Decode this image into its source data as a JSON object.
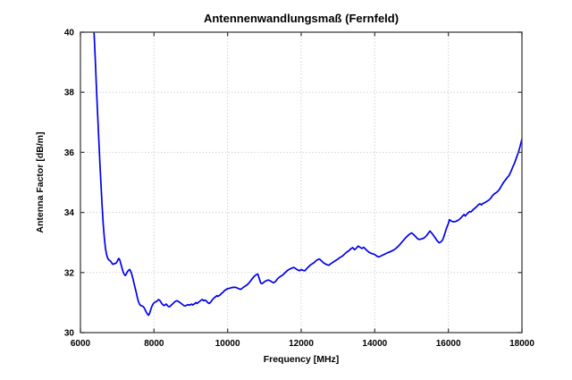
{
  "figure": {
    "background": "#ffffff"
  },
  "chart_data": {
    "type": "line",
    "title": "Antennenwandlungsmaß (Fernfeld)",
    "xlabel": "Frequency [MHz]",
    "ylabel": "Antenna Factor [dB/m]",
    "xlim": [
      6000,
      18000
    ],
    "ylim": [
      30,
      40
    ],
    "xticks": [
      6000,
      8000,
      10000,
      12000,
      14000,
      16000,
      18000
    ],
    "yticks": [
      30,
      32,
      34,
      36,
      38,
      40
    ],
    "grid": true,
    "legend": "none",
    "line_color": "#0000ee",
    "axis_color": "#404040",
    "grid_color": "#c8c8c8",
    "series": [
      {
        "name": "antenna-factor-far-field",
        "points": [
          [
            6360,
            40.25
          ],
          [
            6385,
            39.6
          ],
          [
            6410,
            38.9
          ],
          [
            6440,
            38.0
          ],
          [
            6470,
            37.2
          ],
          [
            6500,
            36.4
          ],
          [
            6530,
            35.6
          ],
          [
            6560,
            34.9
          ],
          [
            6590,
            34.2
          ],
          [
            6620,
            33.6
          ],
          [
            6650,
            33.15
          ],
          [
            6680,
            32.8
          ],
          [
            6710,
            32.6
          ],
          [
            6740,
            32.48
          ],
          [
            6770,
            32.42
          ],
          [
            6800,
            32.4
          ],
          [
            6830,
            32.36
          ],
          [
            6860,
            32.3
          ],
          [
            6890,
            32.27
          ],
          [
            6920,
            32.3
          ],
          [
            6950,
            32.3
          ],
          [
            6980,
            32.33
          ],
          [
            7010,
            32.4
          ],
          [
            7040,
            32.47
          ],
          [
            7070,
            32.42
          ],
          [
            7100,
            32.28
          ],
          [
            7130,
            32.15
          ],
          [
            7160,
            32.02
          ],
          [
            7190,
            31.94
          ],
          [
            7220,
            31.9
          ],
          [
            7250,
            31.96
          ],
          [
            7280,
            32.03
          ],
          [
            7310,
            32.08
          ],
          [
            7340,
            32.1
          ],
          [
            7370,
            32.03
          ],
          [
            7400,
            31.92
          ],
          [
            7430,
            31.78
          ],
          [
            7460,
            31.62
          ],
          [
            7490,
            31.47
          ],
          [
            7520,
            31.32
          ],
          [
            7550,
            31.15
          ],
          [
            7580,
            31.02
          ],
          [
            7610,
            30.94
          ],
          [
            7640,
            30.9
          ],
          [
            7670,
            30.89
          ],
          [
            7700,
            30.87
          ],
          [
            7730,
            30.83
          ],
          [
            7760,
            30.76
          ],
          [
            7790,
            30.68
          ],
          [
            7820,
            30.62
          ],
          [
            7850,
            30.58
          ],
          [
            7880,
            30.64
          ],
          [
            7910,
            30.76
          ],
          [
            7940,
            30.87
          ],
          [
            7970,
            30.94
          ],
          [
            8000,
            30.99
          ],
          [
            8030,
            31.02
          ],
          [
            8060,
            31.03
          ],
          [
            8090,
            31.06
          ],
          [
            8120,
            31.1
          ],
          [
            8150,
            31.08
          ],
          [
            8180,
            31.03
          ],
          [
            8210,
            30.97
          ],
          [
            8240,
            30.93
          ],
          [
            8270,
            30.9
          ],
          [
            8300,
            30.92
          ],
          [
            8330,
            30.95
          ],
          [
            8360,
            30.91
          ],
          [
            8390,
            30.87
          ],
          [
            8420,
            30.86
          ],
          [
            8450,
            30.89
          ],
          [
            8480,
            30.93
          ],
          [
            8510,
            30.96
          ],
          [
            8540,
            31.0
          ],
          [
            8570,
            31.03
          ],
          [
            8600,
            31.05
          ],
          [
            8630,
            31.06
          ],
          [
            8660,
            31.04
          ],
          [
            8690,
            31.01
          ],
          [
            8720,
            30.99
          ],
          [
            8750,
            30.96
          ],
          [
            8780,
            30.93
          ],
          [
            8810,
            30.9
          ],
          [
            8840,
            30.89
          ],
          [
            8870,
            30.9
          ],
          [
            8900,
            30.92
          ],
          [
            8930,
            30.93
          ],
          [
            8960,
            30.91
          ],
          [
            8990,
            30.93
          ],
          [
            9020,
            30.95
          ],
          [
            9050,
            30.92
          ],
          [
            9080,
            30.94
          ],
          [
            9110,
            30.97
          ],
          [
            9140,
            31.0
          ],
          [
            9170,
            30.97
          ],
          [
            9200,
            31.0
          ],
          [
            9230,
            31.03
          ],
          [
            9260,
            31.06
          ],
          [
            9290,
            31.09
          ],
          [
            9320,
            31.1
          ],
          [
            9350,
            31.06
          ],
          [
            9380,
            31.08
          ],
          [
            9410,
            31.07
          ],
          [
            9440,
            31.03
          ],
          [
            9470,
            30.99
          ],
          [
            9500,
            30.97
          ],
          [
            9530,
            31.0
          ],
          [
            9560,
            31.05
          ],
          [
            9590,
            31.1
          ],
          [
            9620,
            31.14
          ],
          [
            9650,
            31.17
          ],
          [
            9680,
            31.2
          ],
          [
            9710,
            31.23
          ],
          [
            9740,
            31.21
          ],
          [
            9770,
            31.23
          ],
          [
            9800,
            31.26
          ],
          [
            9830,
            31.3
          ],
          [
            9870,
            31.34
          ],
          [
            9910,
            31.39
          ],
          [
            9950,
            31.43
          ],
          [
            10000,
            31.46
          ],
          [
            10060,
            31.48
          ],
          [
            10120,
            31.5
          ],
          [
            10180,
            31.51
          ],
          [
            10240,
            31.5
          ],
          [
            10300,
            31.46
          ],
          [
            10360,
            31.44
          ],
          [
            10420,
            31.5
          ],
          [
            10480,
            31.55
          ],
          [
            10540,
            31.6
          ],
          [
            10600,
            31.68
          ],
          [
            10660,
            31.78
          ],
          [
            10720,
            31.87
          ],
          [
            10780,
            31.93
          ],
          [
            10820,
            31.95
          ],
          [
            10860,
            31.8
          ],
          [
            10900,
            31.65
          ],
          [
            10940,
            31.63
          ],
          [
            10980,
            31.67
          ],
          [
            11020,
            31.71
          ],
          [
            11060,
            31.73
          ],
          [
            11100,
            31.75
          ],
          [
            11150,
            31.73
          ],
          [
            11200,
            31.69
          ],
          [
            11250,
            31.66
          ],
          [
            11300,
            31.7
          ],
          [
            11350,
            31.78
          ],
          [
            11400,
            31.84
          ],
          [
            11450,
            31.88
          ],
          [
            11500,
            31.92
          ],
          [
            11550,
            31.98
          ],
          [
            11600,
            32.04
          ],
          [
            11650,
            32.09
          ],
          [
            11700,
            32.12
          ],
          [
            11750,
            32.15
          ],
          [
            11800,
            32.17
          ],
          [
            11850,
            32.13
          ],
          [
            11900,
            32.09
          ],
          [
            11950,
            32.06
          ],
          [
            12000,
            32.1
          ],
          [
            12050,
            32.07
          ],
          [
            12100,
            32.06
          ],
          [
            12150,
            32.13
          ],
          [
            12200,
            32.19
          ],
          [
            12250,
            32.25
          ],
          [
            12300,
            32.29
          ],
          [
            12350,
            32.33
          ],
          [
            12400,
            32.39
          ],
          [
            12450,
            32.43
          ],
          [
            12500,
            32.45
          ],
          [
            12550,
            32.39
          ],
          [
            12600,
            32.33
          ],
          [
            12650,
            32.29
          ],
          [
            12700,
            32.26
          ],
          [
            12750,
            32.24
          ],
          [
            12800,
            32.29
          ],
          [
            12850,
            32.33
          ],
          [
            12900,
            32.37
          ],
          [
            12950,
            32.41
          ],
          [
            13000,
            32.45
          ],
          [
            13050,
            32.5
          ],
          [
            13100,
            32.53
          ],
          [
            13150,
            32.58
          ],
          [
            13200,
            32.64
          ],
          [
            13250,
            32.69
          ],
          [
            13300,
            32.73
          ],
          [
            13350,
            32.79
          ],
          [
            13400,
            32.83
          ],
          [
            13450,
            32.76
          ],
          [
            13500,
            32.81
          ],
          [
            13550,
            32.88
          ],
          [
            13600,
            32.84
          ],
          [
            13650,
            32.8
          ],
          [
            13700,
            32.84
          ],
          [
            13750,
            32.78
          ],
          [
            13800,
            32.72
          ],
          [
            13850,
            32.67
          ],
          [
            13900,
            32.64
          ],
          [
            13950,
            32.62
          ],
          [
            14000,
            32.6
          ],
          [
            14050,
            32.55
          ],
          [
            14100,
            32.52
          ],
          [
            14150,
            32.54
          ],
          [
            14200,
            32.57
          ],
          [
            14250,
            32.6
          ],
          [
            14300,
            32.63
          ],
          [
            14350,
            32.66
          ],
          [
            14400,
            32.68
          ],
          [
            14450,
            32.71
          ],
          [
            14500,
            32.74
          ],
          [
            14550,
            32.78
          ],
          [
            14600,
            32.83
          ],
          [
            14650,
            32.89
          ],
          [
            14700,
            32.96
          ],
          [
            14750,
            33.03
          ],
          [
            14800,
            33.1
          ],
          [
            14850,
            33.17
          ],
          [
            14900,
            33.23
          ],
          [
            14950,
            33.28
          ],
          [
            15000,
            33.32
          ],
          [
            15050,
            33.27
          ],
          [
            15100,
            33.21
          ],
          [
            15150,
            33.14
          ],
          [
            15200,
            33.1
          ],
          [
            15250,
            33.11
          ],
          [
            15300,
            33.13
          ],
          [
            15350,
            33.16
          ],
          [
            15400,
            33.22
          ],
          [
            15450,
            33.3
          ],
          [
            15500,
            33.38
          ],
          [
            15550,
            33.31
          ],
          [
            15600,
            33.23
          ],
          [
            15650,
            33.14
          ],
          [
            15700,
            33.05
          ],
          [
            15750,
            32.99
          ],
          [
            15800,
            33.02
          ],
          [
            15850,
            33.1
          ],
          [
            15900,
            33.28
          ],
          [
            15950,
            33.48
          ],
          [
            16000,
            33.63
          ],
          [
            16030,
            33.76
          ],
          [
            16060,
            33.73
          ],
          [
            16100,
            33.7
          ],
          [
            16150,
            33.69
          ],
          [
            16200,
            33.7
          ],
          [
            16250,
            33.73
          ],
          [
            16300,
            33.77
          ],
          [
            16350,
            33.83
          ],
          [
            16400,
            33.9
          ],
          [
            16430,
            33.93
          ],
          [
            16460,
            33.88
          ],
          [
            16500,
            33.94
          ],
          [
            16540,
            33.99
          ],
          [
            16580,
            34.03
          ],
          [
            16620,
            34.02
          ],
          [
            16660,
            34.08
          ],
          [
            16700,
            34.12
          ],
          [
            16740,
            34.16
          ],
          [
            16780,
            34.21
          ],
          [
            16820,
            34.26
          ],
          [
            16860,
            34.29
          ],
          [
            16900,
            34.25
          ],
          [
            16940,
            34.3
          ],
          [
            16980,
            34.32
          ],
          [
            17020,
            34.35
          ],
          [
            17060,
            34.38
          ],
          [
            17100,
            34.41
          ],
          [
            17150,
            34.47
          ],
          [
            17200,
            34.56
          ],
          [
            17250,
            34.62
          ],
          [
            17300,
            34.66
          ],
          [
            17350,
            34.71
          ],
          [
            17400,
            34.79
          ],
          [
            17450,
            34.9
          ],
          [
            17500,
            35.0
          ],
          [
            17550,
            35.08
          ],
          [
            17600,
            35.16
          ],
          [
            17650,
            35.23
          ],
          [
            17700,
            35.36
          ],
          [
            17750,
            35.51
          ],
          [
            17800,
            35.65
          ],
          [
            17850,
            35.82
          ],
          [
            17900,
            35.99
          ],
          [
            17950,
            36.2
          ],
          [
            18000,
            36.45
          ]
        ]
      }
    ]
  }
}
